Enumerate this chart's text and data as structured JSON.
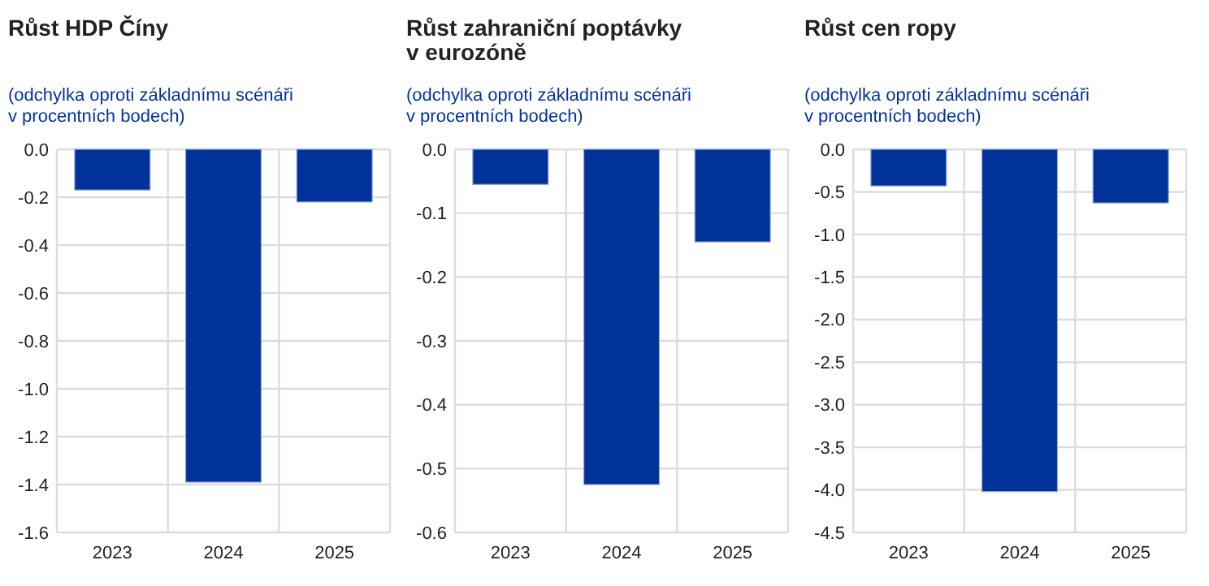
{
  "chart_data": [
    {
      "type": "bar",
      "title": "Růst HDP Číny",
      "subtitle": "(odchylka oproti základnímu scénáři v procentních bodech)",
      "categories": [
        "2023",
        "2024",
        "2025"
      ],
      "values": [
        -0.17,
        -1.39,
        -0.22
      ],
      "color": "#003299",
      "ylim": [
        -1.6,
        0
      ],
      "yticks": [
        {
          "value": 0,
          "label": "0.0"
        },
        -0.2,
        -0.4,
        -0.6,
        -0.8,
        {
          "value": -1,
          "label": "-1.0"
        },
        -1.2,
        -1.4,
        -1.6
      ],
      "grid": true
    },
    {
      "type": "bar",
      "title": "Růst zahraniční poptávky v eurozóně",
      "subtitle": "(odchylka oproti základnímu scénáři v procentních bodech)",
      "categories": [
        "2023",
        "2024",
        "2025"
      ],
      "values": [
        -0.055,
        -0.525,
        -0.145
      ],
      "color": "#003299",
      "ylim": [
        -0.6,
        0
      ],
      "yticks": [
        {
          "value": 0,
          "label": "0.0"
        },
        -0.1,
        -0.2,
        -0.3,
        -0.4,
        -0.5,
        -0.6
      ],
      "grid": true
    },
    {
      "type": "bar",
      "title": "Růst cen ropy",
      "subtitle": "(odchylka oproti základnímu scénáři v procentních bodech)",
      "categories": [
        "2023",
        "2024",
        "2025"
      ],
      "values": [
        -0.43,
        -4.02,
        -0.63
      ],
      "color": "#003299",
      "ylim": [
        -4.5,
        0
      ],
      "yticks": [
        {
          "value": 0,
          "label": "0.0"
        },
        -0.5,
        {
          "value": -1,
          "label": "-1.0"
        },
        -1.5,
        {
          "value": -2,
          "label": "-2.0"
        },
        -2.5,
        {
          "value": -3,
          "label": "-3.0"
        },
        -3.5,
        {
          "value": -4,
          "label": "-4.0"
        },
        -4.5
      ],
      "grid": true
    }
  ]
}
